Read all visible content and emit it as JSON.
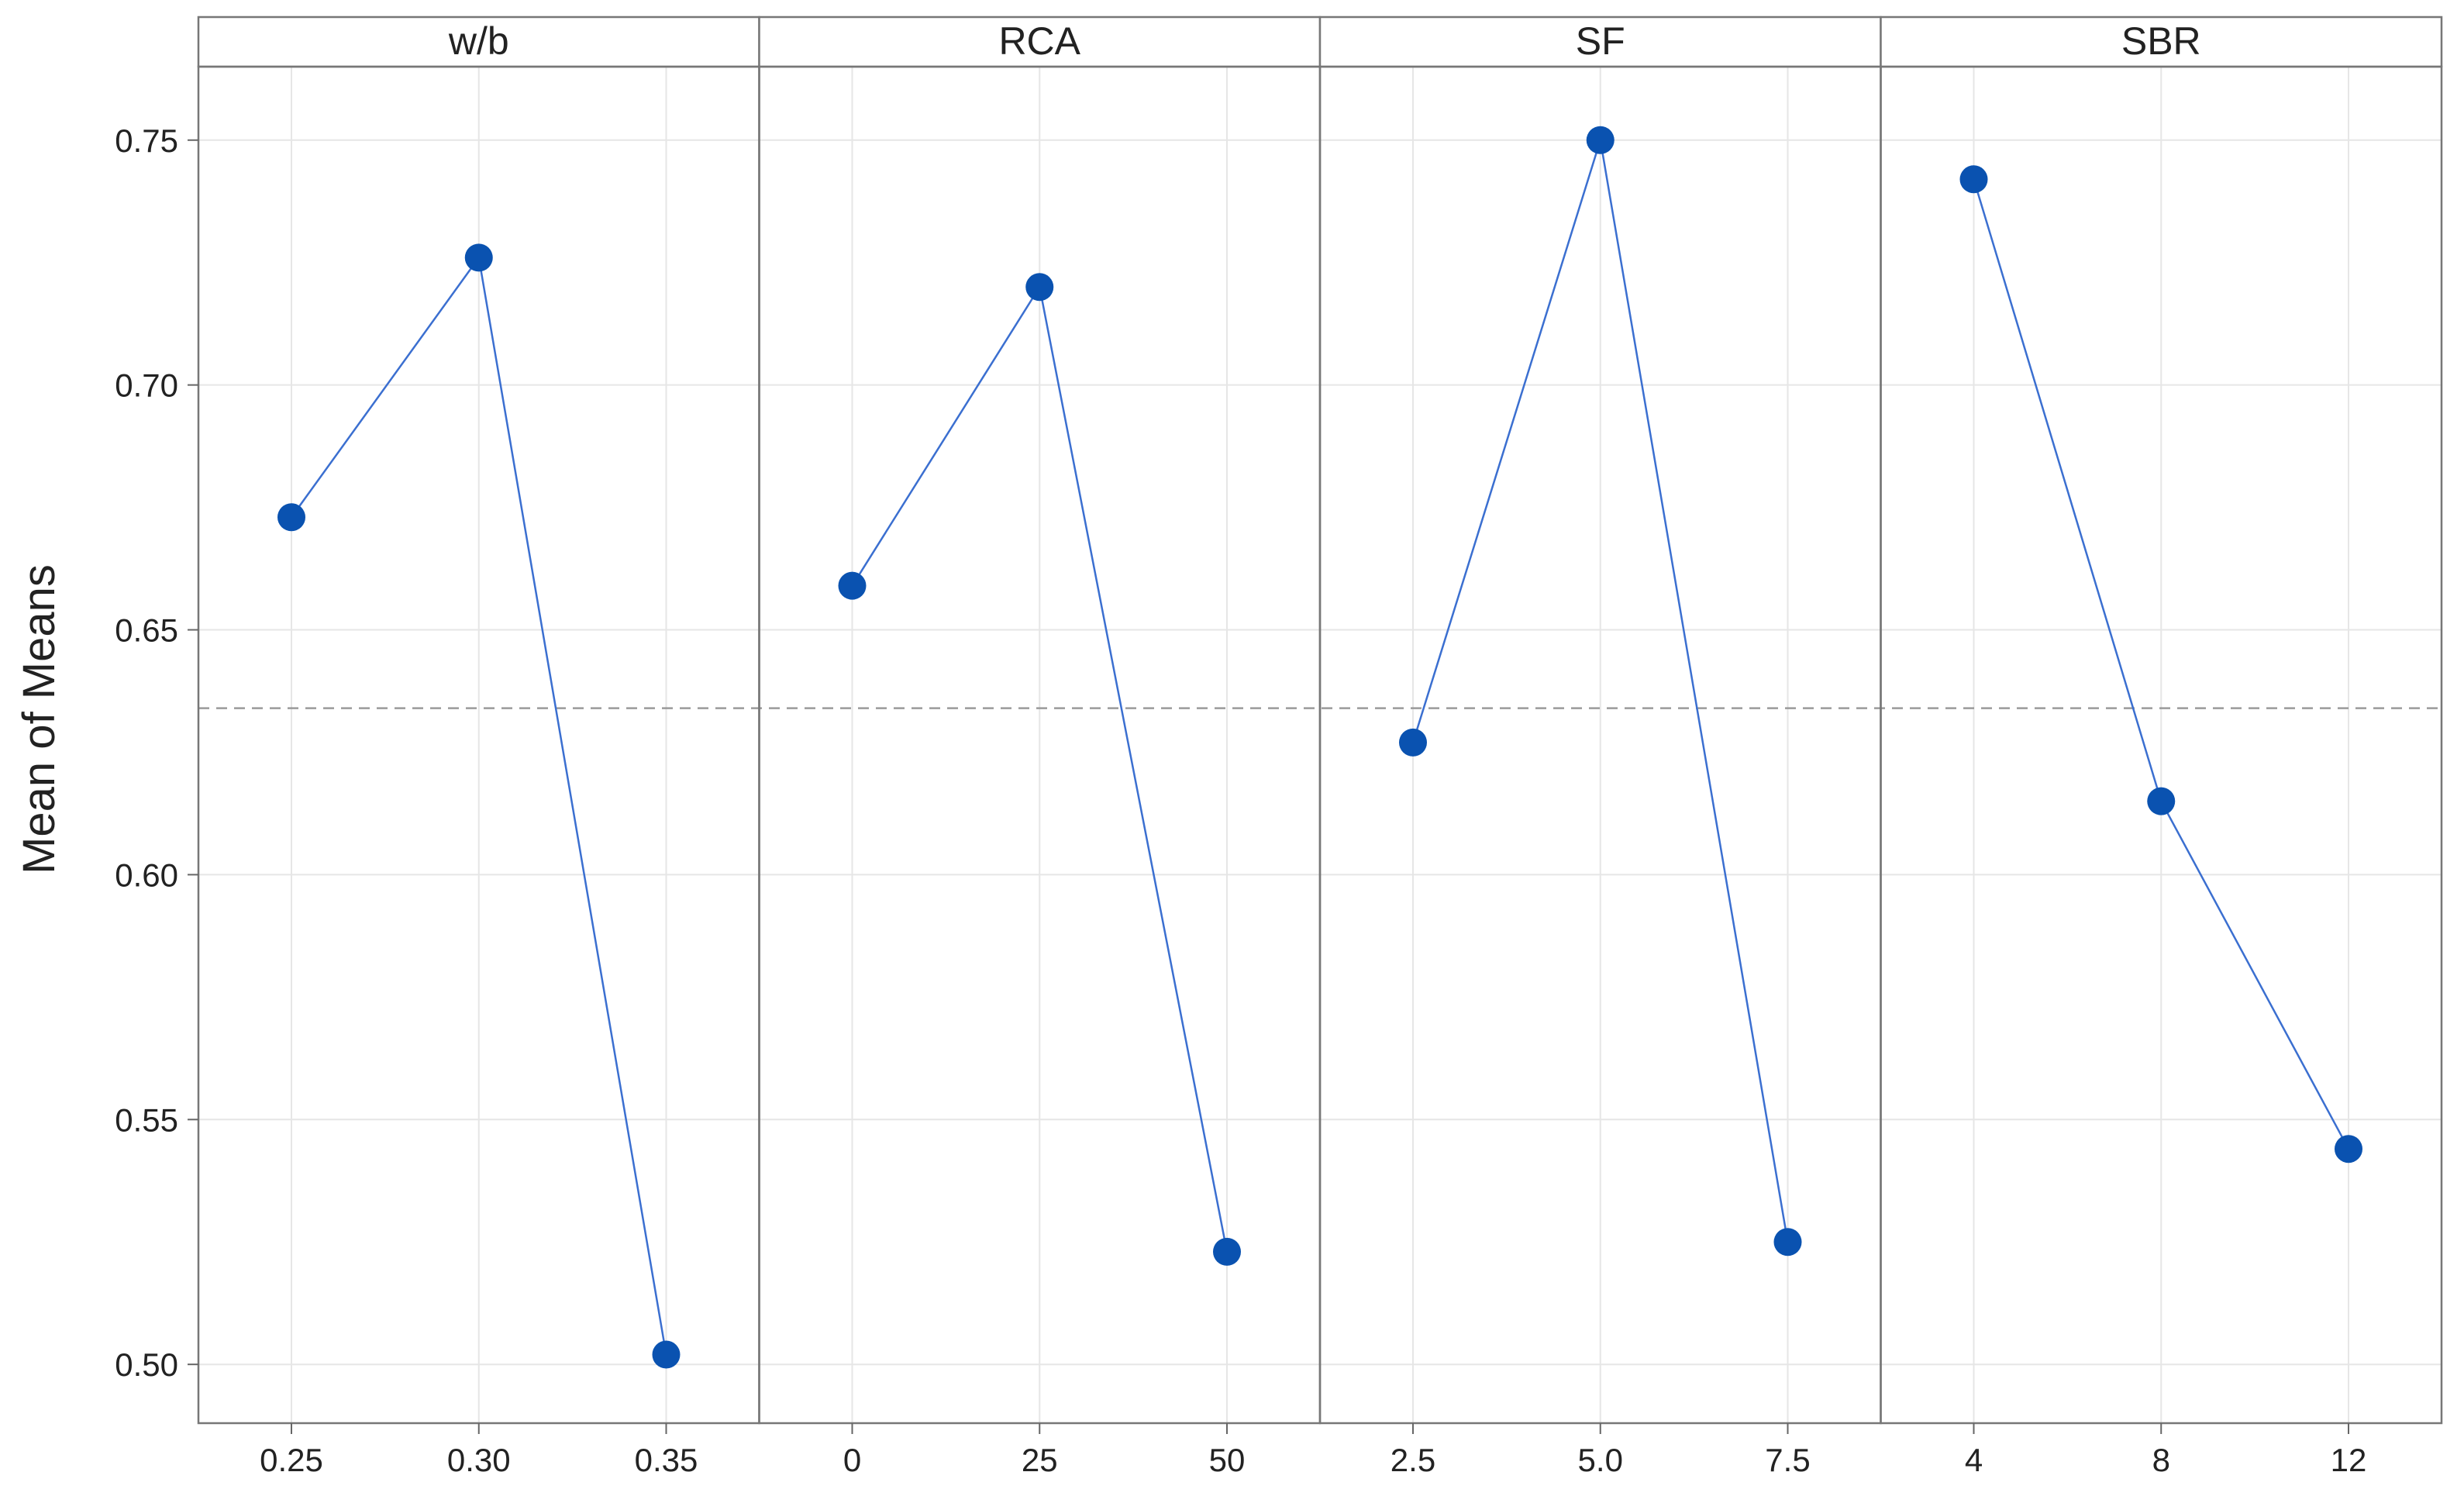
{
  "chart_data": {
    "type": "line",
    "ylabel": "Mean of Means",
    "ylim": [
      0.488,
      0.765
    ],
    "yticks": [
      0.5,
      0.55,
      0.6,
      0.65,
      0.7,
      0.75
    ],
    "ytick_labels": [
      "0.50",
      "0.55",
      "0.60",
      "0.65",
      "0.70",
      "0.75"
    ],
    "reference_line": 0.634,
    "grid": true,
    "marker_color": "#0a52b0",
    "line_color": "#3b6fd0",
    "panels": [
      {
        "name": "w/b",
        "categories": [
          "0.25",
          "0.30",
          "0.35"
        ],
        "values": [
          0.673,
          0.726,
          0.502
        ]
      },
      {
        "name": "RCA",
        "categories": [
          "0",
          "25",
          "50"
        ],
        "values": [
          0.659,
          0.72,
          0.523
        ]
      },
      {
        "name": "SF",
        "categories": [
          "2.5",
          "5.0",
          "7.5"
        ],
        "values": [
          0.627,
          0.75,
          0.525
        ]
      },
      {
        "name": "SBR",
        "categories": [
          "4",
          "8",
          "12"
        ],
        "values": [
          0.742,
          0.615,
          0.544
        ]
      }
    ]
  }
}
